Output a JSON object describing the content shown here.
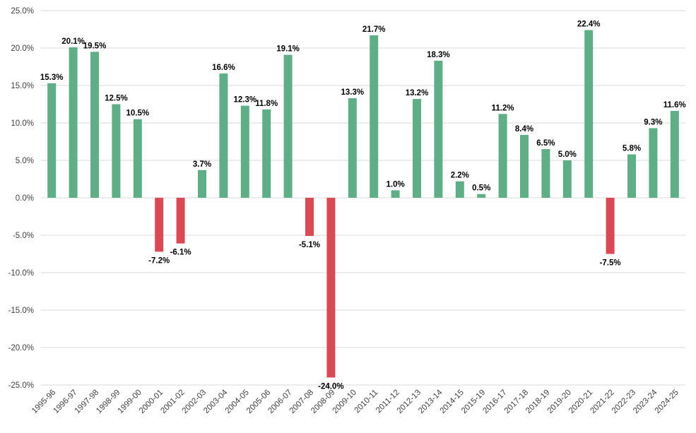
{
  "chart_data": {
    "type": "bar",
    "title": "",
    "xlabel": "",
    "ylabel": "",
    "ylim": [
      -25,
      25
    ],
    "yticks": [
      25,
      20,
      15,
      10,
      5,
      0,
      -5,
      -10,
      -15,
      -20,
      -25
    ],
    "ytick_labels": [
      "25.0%",
      "20.0%",
      "15.0%",
      "10.0%",
      "5.0%",
      "0.0%",
      "-5.0%",
      "-10.0%",
      "-15.0%",
      "-20.0%",
      "-25.0%"
    ],
    "grid": true,
    "legend": "none",
    "colors": {
      "positive": "#5fae88",
      "negative": "#d94a55",
      "grid": "#d9d9d9",
      "axis_text": "#404040",
      "label_text": "#000000"
    },
    "categories": [
      "1995-96",
      "1996-97",
      "1997-98",
      "1998-99",
      "1999-00",
      "2000-01",
      "2001-02",
      "2002-03",
      "2003-04",
      "2004-05",
      "2005-06",
      "2006-07",
      "2007-08",
      "2008-09",
      "2009-10",
      "2010-11",
      "2011-12",
      "2012-13",
      "2013-14",
      "2014-15",
      "2015-19",
      "2016-17",
      "2017-18",
      "2018-19",
      "2019-20",
      "2020-21",
      "2021-22",
      "2022-23",
      "2023-24",
      "2024-25"
    ],
    "values": [
      15.3,
      20.1,
      19.5,
      12.5,
      10.5,
      -7.2,
      -6.1,
      3.7,
      16.6,
      12.3,
      11.8,
      19.1,
      -5.1,
      -24.0,
      13.3,
      21.7,
      1.0,
      13.2,
      18.3,
      2.2,
      0.5,
      11.2,
      8.4,
      6.5,
      5.0,
      22.4,
      -7.5,
      5.8,
      9.3,
      11.6
    ],
    "data_labels": [
      "15.3%",
      "20.1%",
      "19.5%",
      "12.5%",
      "10.5%",
      "-7.2%",
      "-6.1%",
      "3.7%",
      "16.6%",
      "12.3%",
      "11.8%",
      "19.1%",
      "-5.1%",
      "-24.0%",
      "13.3%",
      "21.7%",
      "1.0%",
      "13.2%",
      "18.3%",
      "2.2%",
      "0.5%",
      "11.2%",
      "8.4%",
      "6.5%",
      "5.0%",
      "22.4%",
      "-7.5%",
      "5.8%",
      "9.3%",
      "11.6%"
    ]
  }
}
